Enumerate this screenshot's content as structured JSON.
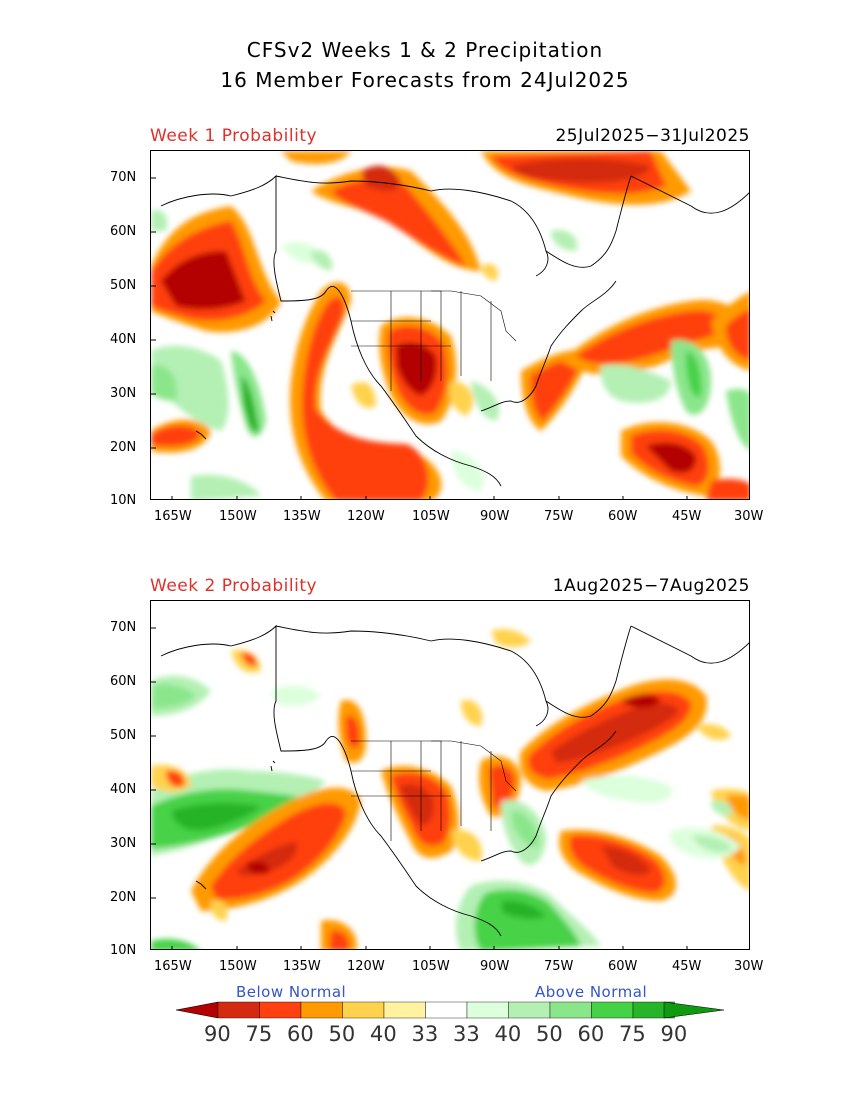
{
  "title_line1": "CFSv2 Weeks 1 & 2 Precipitation",
  "title_line2": "16 Member Forecasts from 24Jul2025",
  "panels": [
    {
      "label": "Week 1 Probability",
      "dates": "25Jul2025−31Jul2025"
    },
    {
      "label": "Week 2 Probability",
      "dates": "1Aug2025−7Aug2025"
    }
  ],
  "lat_ticks": [
    "70N",
    "60N",
    "50N",
    "40N",
    "30N",
    "20N",
    "10N"
  ],
  "lon_ticks": [
    "165W",
    "150W",
    "135W",
    "120W",
    "105W",
    "90W",
    "75W",
    "60W",
    "45W",
    "30W"
  ],
  "map_extent": {
    "lon": [
      -170,
      -30
    ],
    "lat": [
      10,
      75
    ]
  },
  "legend": {
    "below_label": "Below Normal",
    "above_label": "Above Normal",
    "values": [
      "90",
      "75",
      "60",
      "50",
      "40",
      "33",
      "33",
      "40",
      "50",
      "60",
      "75",
      "90"
    ],
    "colors": [
      "#b30000",
      "#d42a10",
      "#ff4010",
      "#ff9a00",
      "#ffd24d",
      "#fff2a0",
      "#ffffff",
      "#dcffdc",
      "#b4f0b4",
      "#8be68b",
      "#46d246",
      "#28b428",
      "#0f9a0f"
    ]
  }
}
